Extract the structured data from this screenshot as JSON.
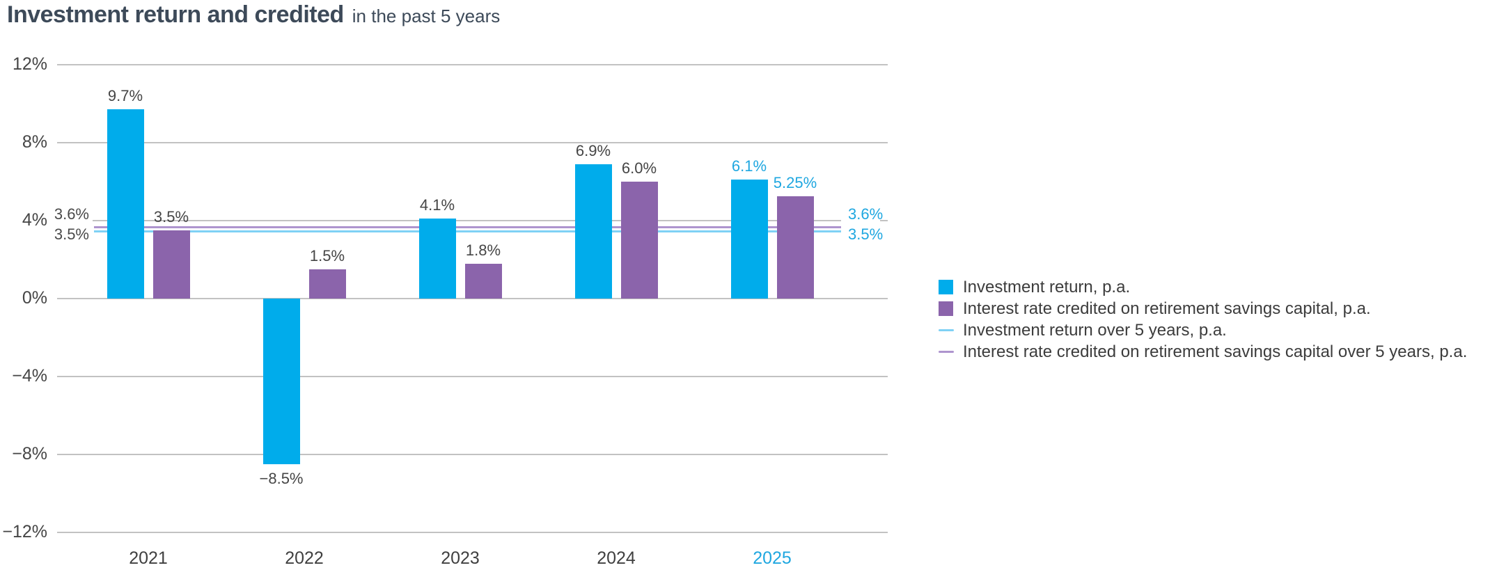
{
  "chart_data": {
    "type": "bar",
    "title": "Investment return and credited",
    "subtitle": "in the past 5 years",
    "categories": [
      "2021",
      "2022",
      "2023",
      "2024",
      "2025"
    ],
    "highlight_category": "2025",
    "series": [
      {
        "name": "Investment return, p.a.",
        "color": "#00aceb",
        "values": [
          9.7,
          -8.5,
          4.1,
          6.9,
          6.1
        ],
        "labels": [
          "9.7%",
          "−8.5%",
          "4.1%",
          "6.9%",
          "6.1%"
        ]
      },
      {
        "name": "Interest rate credited on retirement savings capital, p.a.",
        "color": "#8b64ab",
        "values": [
          3.5,
          1.5,
          1.8,
          6.0,
          5.25
        ],
        "labels": [
          "3.5%",
          "1.5%",
          "1.8%",
          "6.0%",
          "5.25%"
        ]
      }
    ],
    "reference_lines": [
      {
        "name": "Interest rate credited on retirement savings capital over 5 years, p.a.",
        "value": 3.6,
        "label": "3.6%",
        "color": "#ae94ce"
      },
      {
        "name": "Investment return over 5 years, p.a.",
        "value": 3.5,
        "label": "3.5%",
        "color": "#7fd1f5"
      }
    ],
    "y_axis": {
      "ticks": [
        "12%",
        "8%",
        "4%",
        "0%",
        "−4%",
        "−8%",
        "−12%"
      ],
      "tick_values": [
        12,
        8,
        4,
        0,
        -4,
        -8,
        -12
      ],
      "ylim": [
        -12,
        12
      ],
      "grid": true
    },
    "legend": {
      "position": "right",
      "entries": [
        {
          "swatch": "square",
          "color": "#00aceb",
          "label": "Investment return, p.a."
        },
        {
          "swatch": "square",
          "color": "#8b64ab",
          "label": "Interest rate credited on retirement savings capital, p.a."
        },
        {
          "swatch": "line",
          "color": "#7fd1f5",
          "label": "Investment return over 5 years, p.a."
        },
        {
          "swatch": "line",
          "color": "#ae94ce",
          "label": "Interest rate credited on retirement savings capital over 5 years, p.a."
        }
      ]
    },
    "colors": {
      "bar_blue": "#00aceb",
      "bar_purple": "#8b64ab",
      "line_blue": "#7fd1f5",
      "line_purple": "#ae94ce",
      "highlight_text": "#1fa7e0",
      "label_text": "#454545",
      "axis_text": "#454545",
      "gridline": "#c2c2c2",
      "title_text": "#3d4a59"
    }
  }
}
